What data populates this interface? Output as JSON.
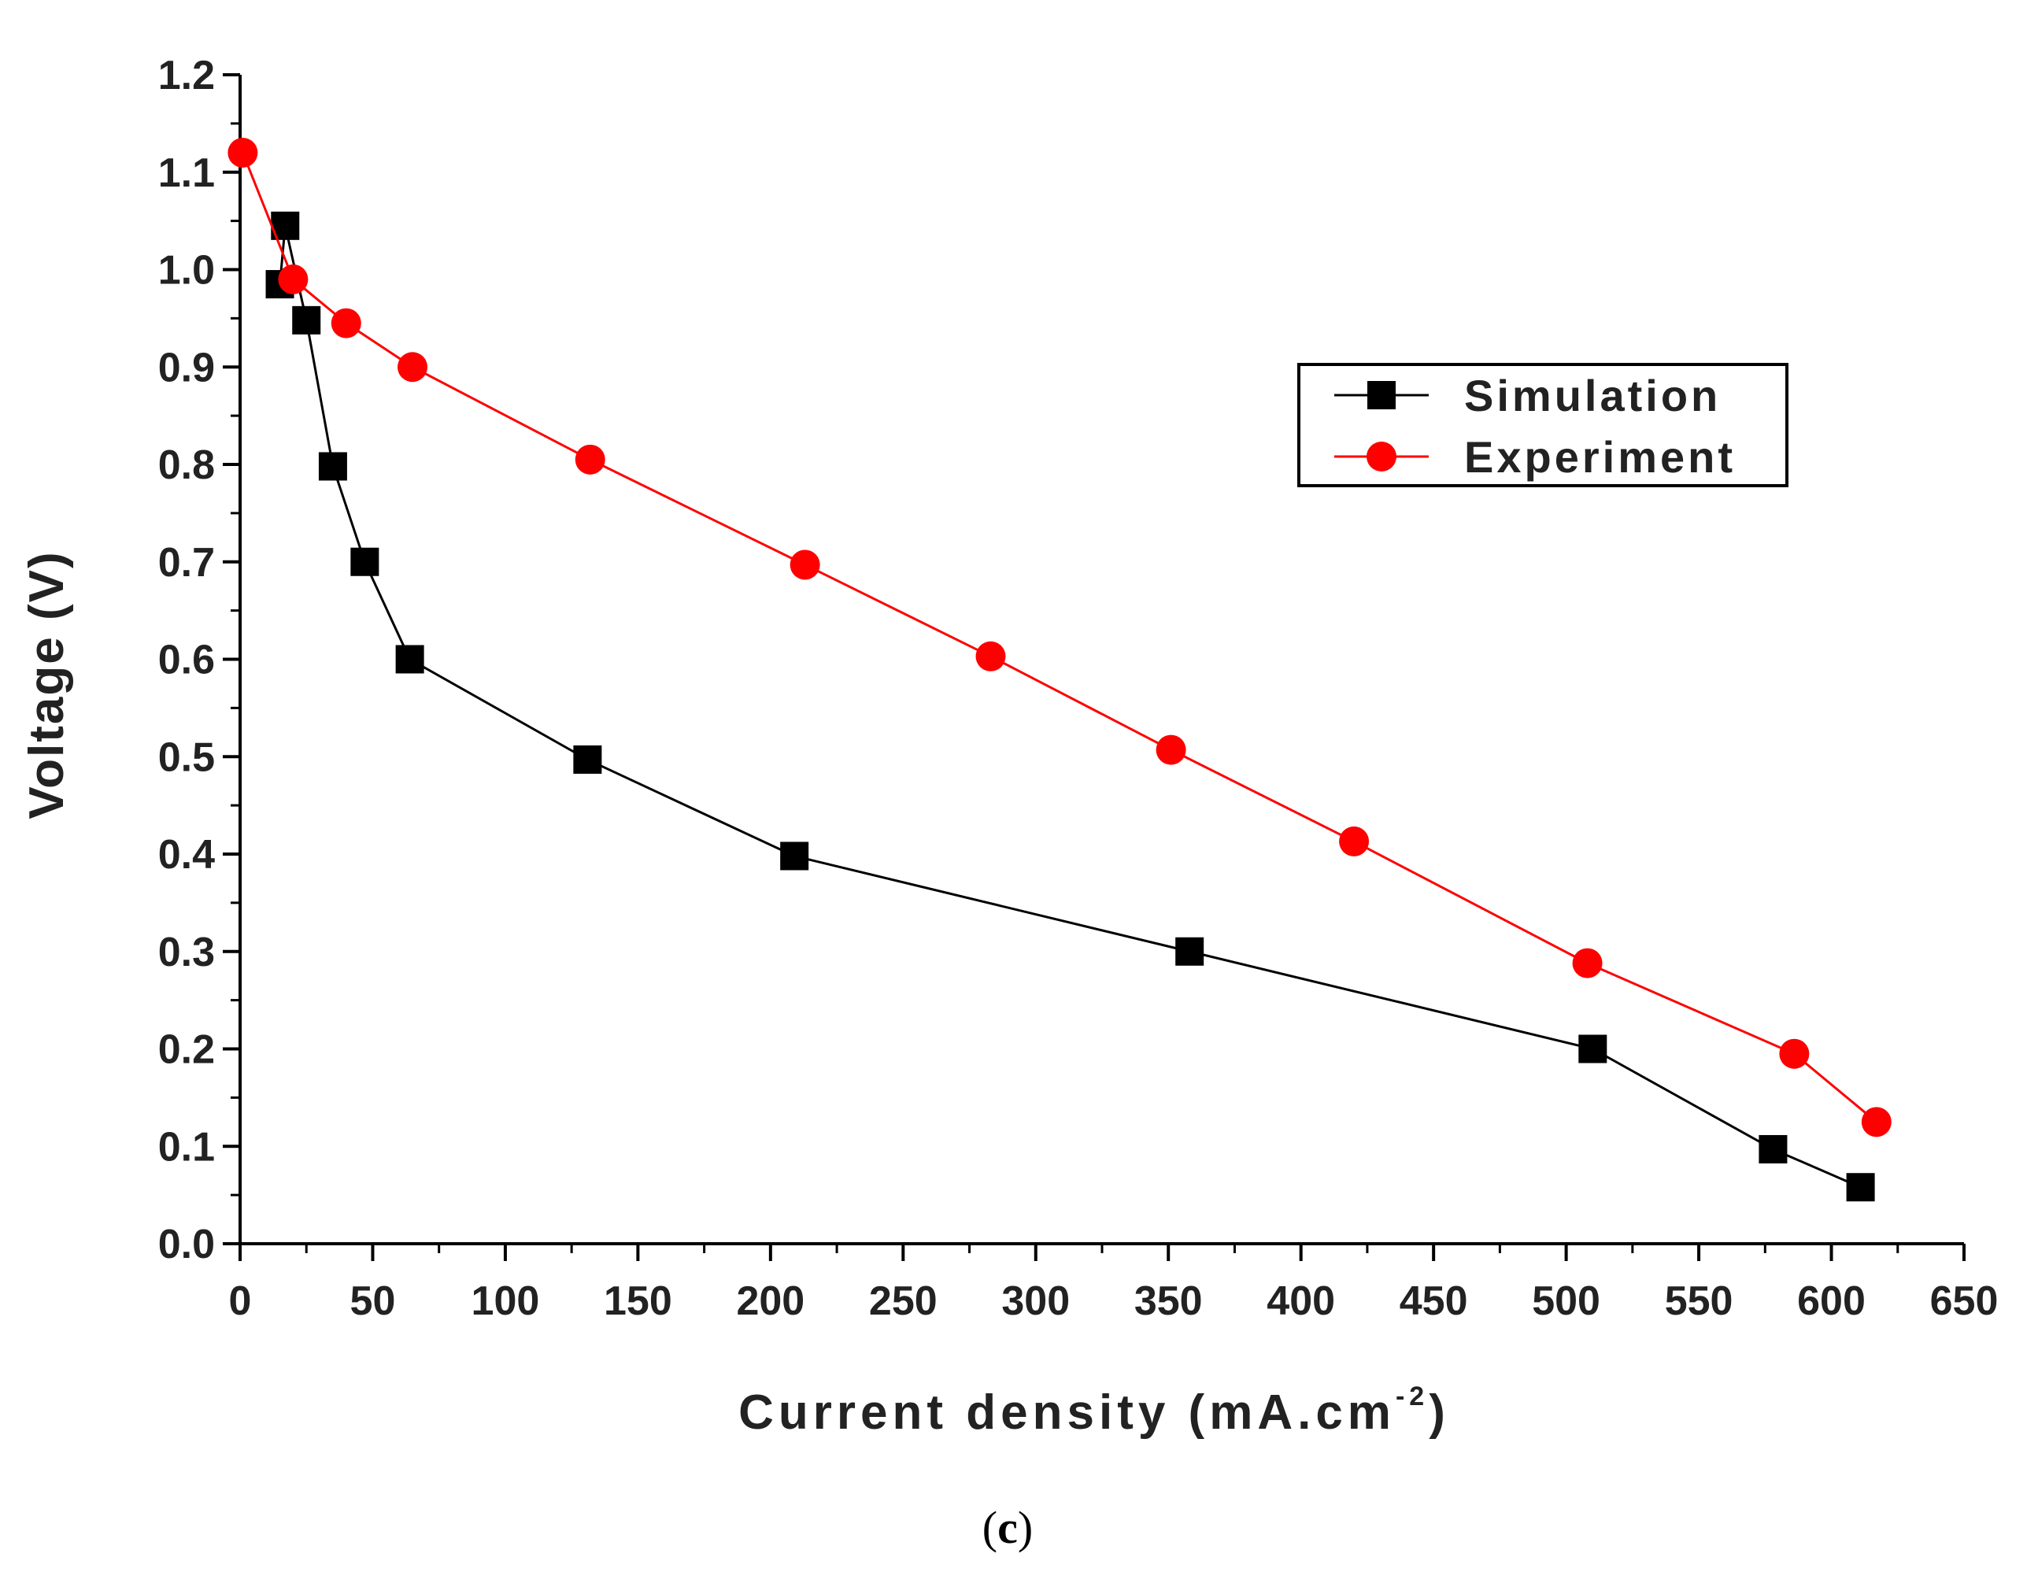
{
  "chart_data": {
    "type": "line",
    "xlabel": "Current density (mA.cm",
    "xlabel_sup": "-2",
    "xlabel_end": ")",
    "ylabel": "Voltage (V)",
    "xlim": [
      0,
      650
    ],
    "ylim": [
      0.0,
      1.2
    ],
    "x_ticks": [
      0,
      50,
      100,
      150,
      200,
      250,
      300,
      350,
      400,
      450,
      500,
      550,
      600,
      650
    ],
    "x_tick_labels": [
      "0",
      "50",
      "100",
      "150",
      "200",
      "250",
      "300",
      "350",
      "400",
      "450",
      "500",
      "550",
      "600",
      "650"
    ],
    "y_ticks": [
      0.0,
      0.1,
      0.2,
      0.3,
      0.4,
      0.5,
      0.6,
      0.7,
      0.8,
      0.9,
      1.0,
      1.1,
      1.2
    ],
    "y_tick_labels": [
      "0.0",
      "0.1",
      "0.2",
      "0.3",
      "0.4",
      "0.5",
      "0.6",
      "0.7",
      "0.8",
      "0.9",
      "1.0",
      "1.1",
      "1.2"
    ],
    "legend_position": "right, upper-middle",
    "series": [
      {
        "name": "Simulation",
        "color": "#000000",
        "marker": "square",
        "x": [
          15,
          17,
          25,
          35,
          47,
          64,
          131,
          209,
          358,
          510,
          578,
          611
        ],
        "y": [
          0.985,
          1.045,
          0.948,
          0.798,
          0.7,
          0.6,
          0.497,
          0.398,
          0.3,
          0.2,
          0.097,
          0.058
        ]
      },
      {
        "name": "Experiment",
        "color": "#ff0000",
        "marker": "circle",
        "x": [
          1,
          20,
          40,
          65,
          132,
          213,
          283,
          351,
          420,
          508,
          586,
          617
        ],
        "y": [
          1.12,
          0.99,
          0.945,
          0.9,
          0.805,
          0.697,
          0.603,
          0.507,
          0.413,
          0.288,
          0.195,
          0.125
        ]
      }
    ]
  },
  "caption": {
    "open": "(",
    "letter": "c",
    "close": ")"
  }
}
